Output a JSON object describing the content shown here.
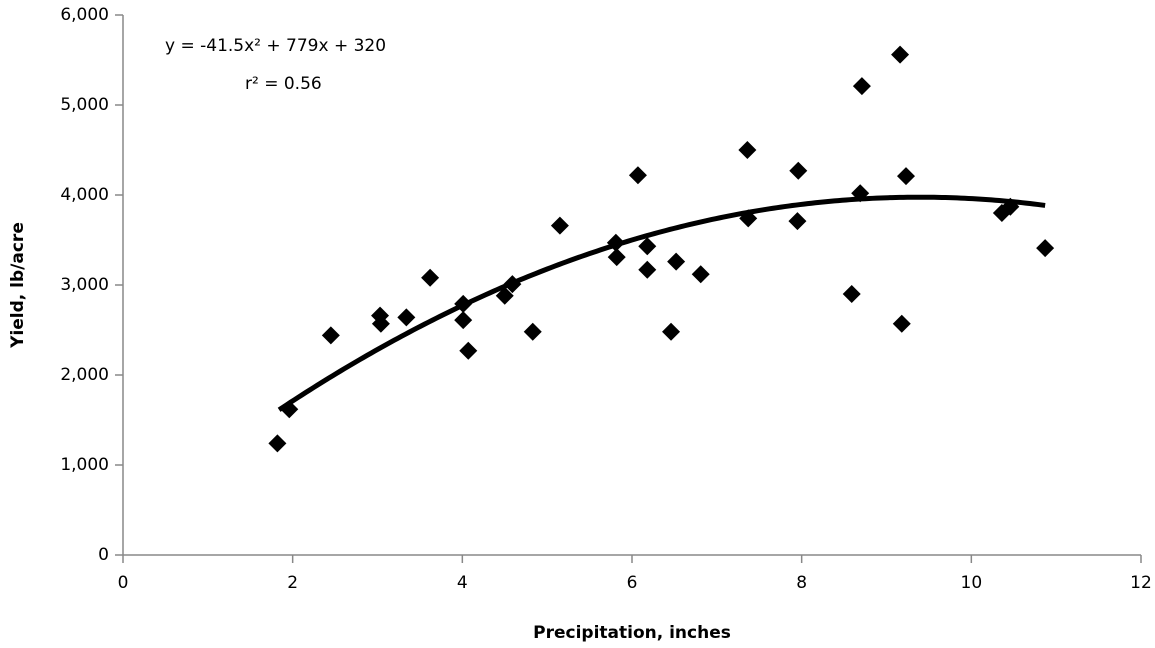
{
  "chart_data": {
    "type": "scatter",
    "x_label": "Precipitation, inches",
    "y_label": "Yield, lb/acre",
    "annotations": [
      "y = -41.5x² + 779x + 320",
      "r² = 0.56"
    ],
    "x": [
      1.82,
      1.96,
      2.45,
      3.03,
      3.04,
      3.34,
      3.62,
      4.01,
      4.01,
      4.07,
      4.5,
      4.59,
      4.83,
      5.15,
      5.81,
      5.82,
      6.07,
      6.18,
      6.18,
      6.52,
      6.46,
      6.81,
      7.36,
      7.37,
      7.96,
      7.95,
      8.59,
      8.71,
      8.69,
      9.16,
      9.23,
      9.18,
      10.36,
      10.46,
      10.87
    ],
    "series": [
      {
        "color": "#000000",
        "values": [
          1240,
          1620,
          2440,
          2660,
          2570,
          2640,
          3080,
          2790,
          2610,
          2270,
          2880,
          3010,
          2480,
          3660,
          3470,
          3310,
          4220,
          3430,
          3170,
          3260,
          2480,
          3120,
          4500,
          3740,
          4270,
          3710,
          2900,
          5210,
          4020,
          5560,
          4210,
          2570,
          3800,
          3870,
          3410
        ]
      }
    ],
    "trendline": {
      "color": "#000000",
      "coefficients": [
        -41.5,
        779,
        320
      ],
      "x_range": [
        1.84,
        10.87
      ]
    },
    "xlim": [
      0,
      12
    ],
    "xticks": [
      0,
      2,
      4,
      6,
      8,
      10,
      12
    ],
    "ylim": [
      0,
      6000
    ],
    "yticks": [
      0,
      {
        "value": 1000,
        "label": "1,000"
      },
      {
        "value": 2000,
        "label": "2,000"
      },
      {
        "value": 3000,
        "label": "3,000"
      },
      {
        "value": 4000,
        "label": "4,000"
      },
      {
        "value": 5000,
        "label": "5,000"
      },
      {
        "value": 6000,
        "label": "6,000"
      }
    ],
    "grid": false
  }
}
